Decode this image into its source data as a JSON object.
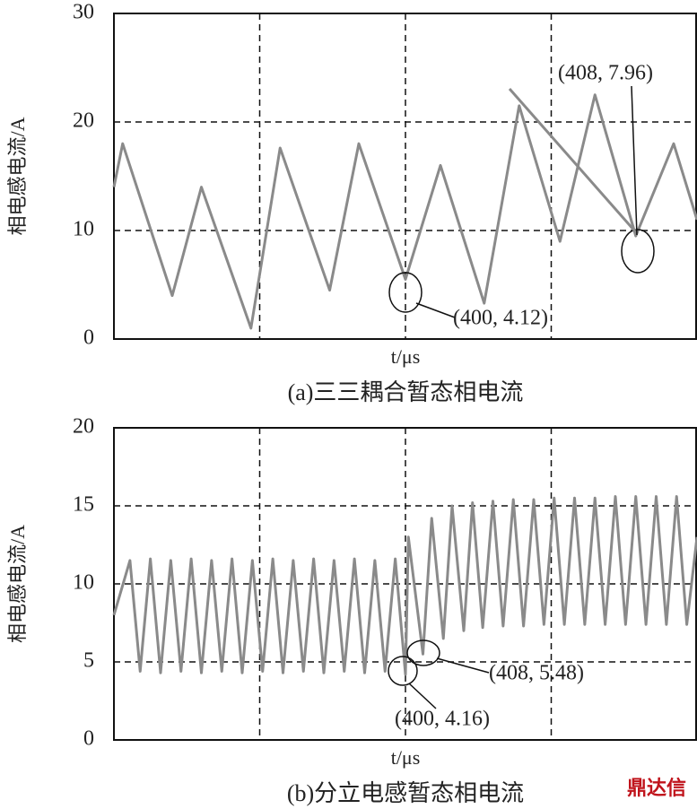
{
  "chart_data": [
    {
      "type": "line",
      "caption": "(a)三三耦合暂态相电流",
      "ylabel": "相电感电流/A",
      "xlabel": "t/μs",
      "color": "#8a8a8a",
      "x": [
        390.0,
        390.3,
        392.0,
        393.0,
        394.7,
        395.7,
        397.4,
        398.4,
        400.0,
        401.2,
        402.7,
        403.9,
        405.3,
        406.5,
        407.9,
        409.2,
        410.0
      ],
      "values": [
        14,
        18,
        4,
        14,
        1,
        17.6,
        4.5,
        18,
        5.5,
        16,
        3.3,
        21.5,
        9,
        22.5,
        9.5,
        18,
        11
      ],
      "xlim": [
        390,
        410
      ],
      "xgrid": [
        395,
        400,
        405
      ],
      "ylim": [
        0,
        30
      ],
      "yticks": [
        0,
        10,
        20,
        30
      ],
      "grid": true,
      "annotations": [
        "(400, 4.12)",
        "(408, 7.96)"
      ]
    },
    {
      "type": "line",
      "caption": "(b)分立电感暂态相电流",
      "ylabel": "相电感电流/A",
      "xlabel": "t/μs",
      "color": "#8a8a8a",
      "x": [
        390.0,
        390.55,
        390.9,
        391.25,
        391.6,
        391.95,
        392.3,
        392.65,
        393.0,
        393.35,
        393.7,
        394.05,
        394.4,
        394.75,
        395.1,
        395.45,
        395.8,
        396.15,
        396.5,
        396.85,
        397.2,
        397.55,
        397.9,
        398.25,
        398.6,
        398.95,
        399.3,
        399.65,
        400.0,
        400.1,
        400.6,
        400.9,
        401.3,
        401.6,
        402.0,
        402.3,
        402.65,
        403.0,
        403.35,
        403.7,
        404.05,
        404.4,
        404.75,
        405.1,
        405.45,
        405.8,
        406.15,
        406.5,
        406.85,
        407.2,
        407.55,
        407.9,
        408.25,
        408.6,
        408.95,
        409.3,
        409.65,
        410.0
      ],
      "values": [
        8,
        11.5,
        4.4,
        11.6,
        4.3,
        11.5,
        4.4,
        11.6,
        4.3,
        11.5,
        4.4,
        11.6,
        4.3,
        11.5,
        4.4,
        11.6,
        4.3,
        11.5,
        4.4,
        11.6,
        4.3,
        11.5,
        4.4,
        11.6,
        4.3,
        11.5,
        4.4,
        11.6,
        4.2,
        13,
        5.5,
        14.2,
        6.5,
        15,
        7,
        15.2,
        7.2,
        15.3,
        7.3,
        15.4,
        7.3,
        15.4,
        7.4,
        15.5,
        7.4,
        15.5,
        7.4,
        15.5,
        7.4,
        15.6,
        7.4,
        15.6,
        7.4,
        15.6,
        7.4,
        15.6,
        7.4,
        13
      ],
      "xlim": [
        390,
        410
      ],
      "xgrid": [
        395,
        400,
        405
      ],
      "ylim": [
        0,
        20
      ],
      "yticks": [
        0,
        5,
        10,
        15,
        20
      ],
      "grid": true,
      "annotations": [
        "(408, 5.48)",
        "(400, 4.16)"
      ]
    }
  ],
  "watermark": "鼎达信"
}
